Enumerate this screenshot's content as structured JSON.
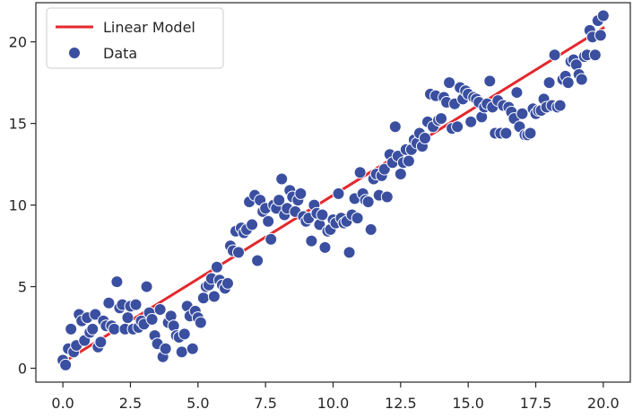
{
  "chart_data": {
    "type": "scatter",
    "title": "",
    "xlabel": "",
    "ylabel": "",
    "xlim": [
      -1.0,
      21.0
    ],
    "ylim": [
      -0.85,
      22.4
    ],
    "xticks": [
      0.0,
      2.5,
      5.0,
      7.5,
      10.0,
      12.5,
      15.0,
      17.5,
      20.0
    ],
    "xtick_labels": [
      "0.0",
      "2.5",
      "5.0",
      "7.5",
      "10.0",
      "12.5",
      "15.0",
      "17.5",
      "20.0"
    ],
    "yticks": [
      0,
      5,
      10,
      15,
      20
    ],
    "ytick_labels": [
      "0",
      "5",
      "10",
      "15",
      "20"
    ],
    "grid": false,
    "legend": {
      "position": "top-left",
      "entries": [
        "Linear Model",
        "Data"
      ]
    },
    "colors": {
      "line": "#e3282d",
      "points": "#3a4fa0",
      "edge": "#ffffff",
      "axis": "#262626"
    },
    "series": [
      {
        "name": "Linear Model",
        "kind": "line",
        "x": [
          0.0,
          20.0
        ],
        "y": [
          0.35,
          20.85
        ]
      },
      {
        "name": "Data",
        "kind": "scatter",
        "x": [
          0.0,
          0.1,
          0.2,
          0.3,
          0.4,
          0.5,
          0.6,
          0.7,
          0.8,
          0.9,
          1.0,
          1.1,
          1.2,
          1.3,
          1.4,
          1.5,
          1.6,
          1.7,
          1.8,
          1.9,
          2.0,
          2.1,
          2.2,
          2.3,
          2.4,
          2.5,
          2.6,
          2.7,
          2.8,
          2.9,
          3.0,
          3.1,
          3.2,
          3.3,
          3.4,
          3.5,
          3.6,
          3.7,
          3.8,
          3.9,
          4.0,
          4.1,
          4.2,
          4.3,
          4.4,
          4.5,
          4.6,
          4.7,
          4.8,
          4.9,
          5.0,
          5.1,
          5.2,
          5.3,
          5.4,
          5.5,
          5.6,
          5.7,
          5.8,
          5.9,
          6.0,
          6.1,
          6.2,
          6.3,
          6.4,
          6.5,
          6.6,
          6.7,
          6.8,
          6.9,
          7.0,
          7.1,
          7.2,
          7.3,
          7.4,
          7.5,
          7.6,
          7.7,
          7.8,
          7.9,
          8.0,
          8.1,
          8.2,
          8.3,
          8.4,
          8.5,
          8.6,
          8.7,
          8.8,
          8.9,
          9.0,
          9.1,
          9.2,
          9.3,
          9.4,
          9.5,
          9.6,
          9.7,
          9.8,
          9.9,
          10.0,
          10.1,
          10.2,
          10.3,
          10.4,
          10.5,
          10.6,
          10.7,
          10.8,
          10.9,
          11.0,
          11.1,
          11.2,
          11.3,
          11.4,
          11.5,
          11.6,
          11.7,
          11.8,
          11.9,
          12.0,
          12.1,
          12.2,
          12.3,
          12.4,
          12.5,
          12.6,
          12.7,
          12.8,
          12.9,
          13.0,
          13.1,
          13.2,
          13.3,
          13.4,
          13.5,
          13.6,
          13.7,
          13.8,
          13.9,
          14.0,
          14.1,
          14.2,
          14.3,
          14.4,
          14.5,
          14.6,
          14.7,
          14.8,
          14.9,
          15.0,
          15.1,
          15.2,
          15.3,
          15.4,
          15.5,
          15.6,
          15.7,
          15.8,
          15.9,
          16.0,
          16.1,
          16.2,
          16.3,
          16.4,
          16.5,
          16.6,
          16.7,
          16.8,
          16.9,
          17.0,
          17.1,
          17.2,
          17.3,
          17.4,
          17.5,
          17.6,
          17.7,
          17.8,
          17.9,
          18.0,
          18.1,
          18.2,
          18.3,
          18.4,
          18.5,
          18.6,
          18.7,
          18.8,
          18.9,
          19.0,
          19.1,
          19.2,
          19.3,
          19.4,
          19.5,
          19.6,
          19.7,
          19.8,
          19.9,
          20.0
        ],
        "y": [
          0.5,
          0.2,
          1.2,
          2.4,
          1.0,
          1.4,
          3.3,
          2.9,
          1.7,
          3.1,
          2.2,
          2.4,
          3.3,
          1.3,
          1.6,
          2.9,
          2.6,
          4.0,
          2.6,
          2.4,
          5.3,
          3.7,
          3.9,
          2.4,
          3.1,
          3.8,
          2.4,
          3.9,
          2.5,
          2.9,
          2.7,
          5.0,
          3.4,
          3.0,
          2.0,
          1.5,
          3.6,
          0.7,
          1.2,
          2.8,
          3.2,
          2.6,
          2.0,
          1.9,
          1.0,
          2.1,
          3.8,
          3.2,
          1.2,
          3.5,
          3.1,
          2.8,
          4.3,
          5.0,
          5.1,
          5.5,
          4.4,
          6.2,
          5.4,
          5.1,
          4.9,
          5.2,
          7.5,
          7.2,
          8.4,
          7.1,
          8.6,
          8.3,
          8.5,
          10.2,
          8.8,
          10.6,
          6.6,
          10.3,
          9.6,
          9.8,
          9.0,
          7.9,
          10.0,
          9.8,
          10.3,
          11.6,
          9.4,
          9.8,
          10.9,
          10.5,
          9.6,
          10.3,
          10.7,
          9.3,
          9.0,
          9.2,
          7.8,
          10.0,
          9.5,
          8.8,
          9.4,
          7.4,
          8.4,
          8.5,
          9.1,
          8.9,
          10.7,
          9.2,
          8.9,
          9.0,
          7.1,
          9.4,
          10.4,
          9.2,
          12.0,
          10.7,
          10.3,
          10.2,
          8.5,
          11.6,
          11.9,
          10.6,
          11.8,
          12.2,
          10.5,
          13.1,
          12.6,
          14.8,
          13.0,
          11.9,
          12.6,
          13.4,
          12.7,
          13.4,
          14.0,
          13.8,
          14.4,
          13.6,
          14.1,
          15.1,
          16.8,
          14.8,
          16.7,
          15.2,
          15.3,
          16.6,
          16.3,
          17.5,
          14.7,
          16.2,
          14.8,
          17.2,
          16.5,
          17.0,
          16.8,
          15.1,
          16.6,
          16.5,
          16.3,
          15.4,
          16.0,
          16.2,
          17.6,
          16.0,
          14.4,
          16.4,
          14.4,
          16.1,
          14.4,
          16.0,
          15.7,
          15.3,
          16.9,
          14.8,
          15.6,
          14.3,
          14.3,
          14.4,
          15.9,
          15.6,
          15.8,
          15.8,
          16.5,
          16.0,
          17.5,
          16.1,
          19.2,
          16.0,
          16.1,
          17.7,
          17.9,
          17.5,
          18.8,
          18.9,
          18.6,
          18.0,
          17.7,
          19.1,
          19.2,
          20.7,
          20.3,
          19.2,
          21.3,
          20.4,
          21.6
        ]
      }
    ]
  }
}
